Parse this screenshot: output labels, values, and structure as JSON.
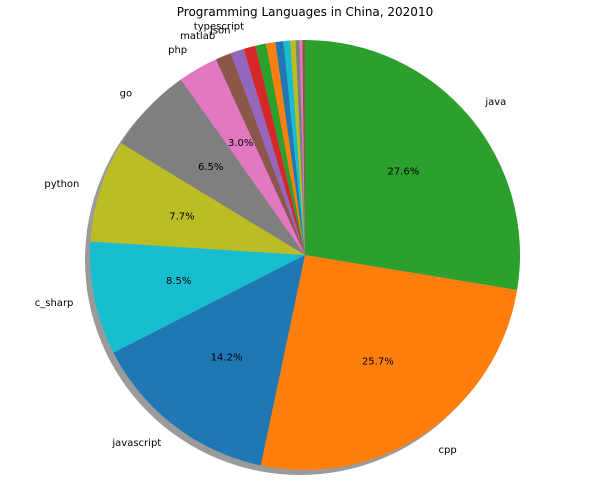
{
  "chart_data": {
    "type": "pie",
    "title": "Programming Languages in China, 202010",
    "start_angle_deg": 90,
    "direction": "clockwise",
    "shadow": true,
    "slices": [
      {
        "label": "java",
        "value": 27.6,
        "pct_label": "27.6%",
        "color": "#2ca02c"
      },
      {
        "label": "cpp",
        "value": 25.7,
        "pct_label": "25.7%",
        "color": "#ff7f0e"
      },
      {
        "label": "javascript",
        "value": 14.2,
        "pct_label": "14.2%",
        "color": "#1f77b4"
      },
      {
        "label": "c_sharp",
        "value": 8.5,
        "pct_label": "8.5%",
        "color": "#17becf"
      },
      {
        "label": "python",
        "value": 7.7,
        "pct_label": "7.7%",
        "color": "#bcbd22"
      },
      {
        "label": "go",
        "value": 6.5,
        "pct_label": "6.5%",
        "color": "#7f7f7f"
      },
      {
        "label": "php",
        "value": 3.0,
        "pct_label": "3.0%",
        "color": "#e377c2"
      },
      {
        "label": "matlab",
        "value": 1.2,
        "pct_label": "",
        "color": "#8c564b"
      },
      {
        "label": "json",
        "value": 1.0,
        "pct_label": "",
        "color": "#9467bd"
      },
      {
        "label": "typescript",
        "value": 0.9,
        "pct_label": "",
        "color": "#d62728"
      },
      {
        "label": "",
        "value": 0.8,
        "pct_label": "",
        "color": "#2ca02c"
      },
      {
        "label": "",
        "value": 0.7,
        "pct_label": "",
        "color": "#ff7f0e"
      },
      {
        "label": "",
        "value": 0.6,
        "pct_label": "",
        "color": "#1f77b4"
      },
      {
        "label": "",
        "value": 0.5,
        "pct_label": "",
        "color": "#17becf"
      },
      {
        "label": "",
        "value": 0.4,
        "pct_label": "",
        "color": "#bcbd22"
      },
      {
        "label": "",
        "value": 0.3,
        "pct_label": "",
        "color": "#7f7f7f"
      },
      {
        "label": "",
        "value": 0.2,
        "pct_label": "",
        "color": "#e377c2"
      },
      {
        "label": "",
        "value": 0.2,
        "pct_label": "",
        "color": "#8c564b"
      }
    ]
  }
}
